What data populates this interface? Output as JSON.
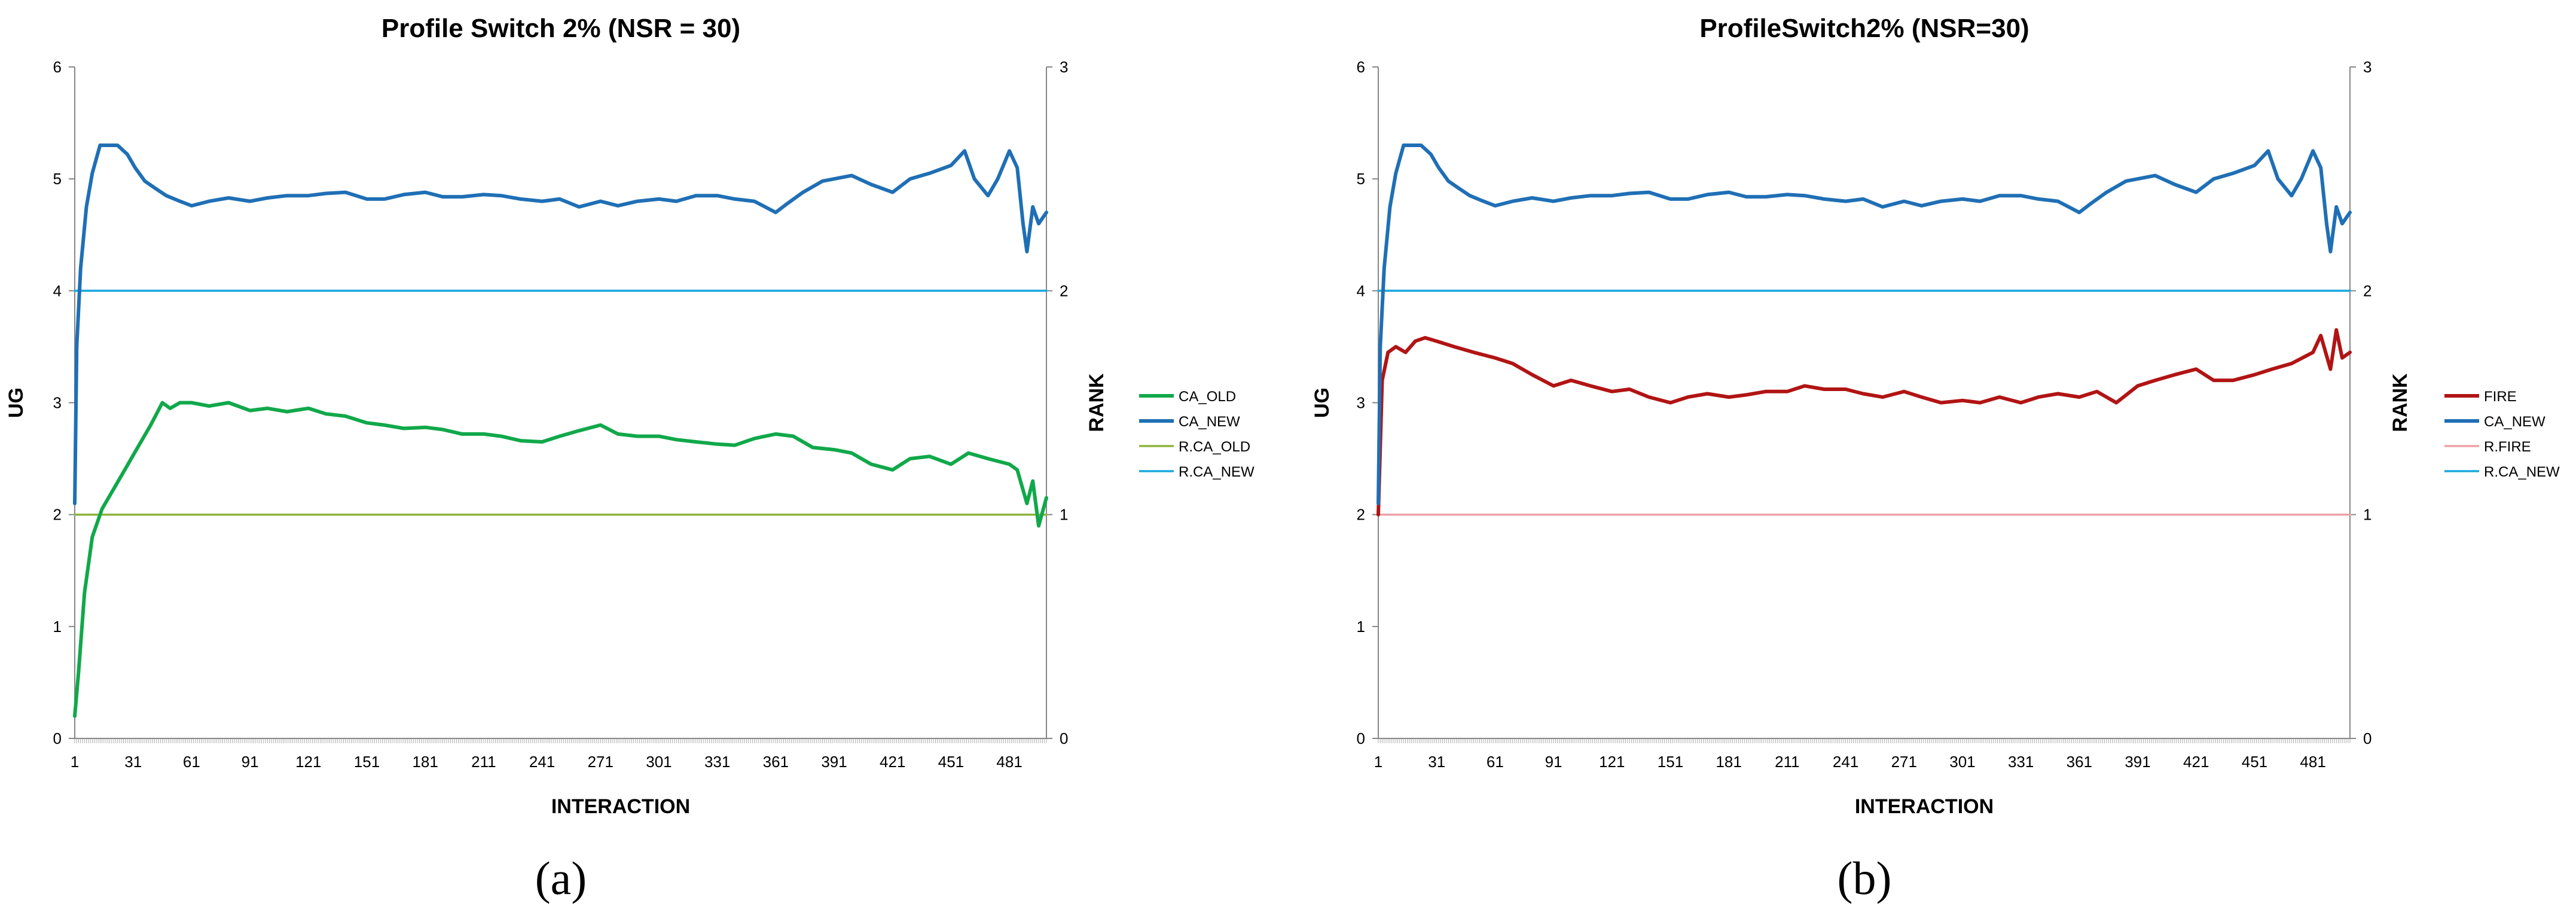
{
  "colors": {
    "ca_new": "#1F6FB5",
    "ca_old": "#11A84A",
    "fire": "#B11414",
    "r_ca_new": "#19A7DE",
    "r_ca_old": "#8DB43C",
    "r_fire": "#EBA2A8",
    "axis": "#868686"
  },
  "chart_data": [
    {
      "type": "line",
      "panel_label": "(a)",
      "title": "Profile Switch 2% (NSR = 30)",
      "xlabel": "INTERACTION",
      "ylabel": "UG",
      "y2label": "RANK",
      "xlim": [
        1,
        500
      ],
      "ylim": [
        0,
        6
      ],
      "y2lim": [
        0,
        3
      ],
      "xticks": [
        1,
        31,
        61,
        91,
        121,
        151,
        181,
        211,
        241,
        271,
        301,
        331,
        361,
        391,
        421,
        451,
        481
      ],
      "yticks": [
        0,
        1,
        2,
        3,
        4,
        5,
        6
      ],
      "y2ticks": [
        0,
        1,
        2,
        3
      ],
      "legend_position": "right",
      "legend": [
        "CA_OLD",
        "CA_NEW",
        "R.CA_OLD",
        "R.CA_NEW"
      ],
      "series": [
        {
          "name": "CA_OLD",
          "axis": "left",
          "color": "#11A84A",
          "x": [
            1,
            3,
            6,
            10,
            15,
            20,
            25,
            30,
            35,
            40,
            46,
            50,
            55,
            61,
            70,
            80,
            91,
            100,
            110,
            121,
            130,
            140,
            151,
            160,
            170,
            181,
            190,
            200,
            211,
            220,
            230,
            241,
            250,
            260,
            271,
            280,
            290,
            301,
            310,
            320,
            331,
            340,
            350,
            361,
            370,
            380,
            391,
            400,
            410,
            421,
            430,
            440,
            451,
            460,
            470,
            481,
            485,
            490,
            493,
            496,
            500
          ],
          "y": [
            0.2,
            0.6,
            1.3,
            1.8,
            2.05,
            2.2,
            2.35,
            2.5,
            2.65,
            2.8,
            3.0,
            2.95,
            3.0,
            3.0,
            2.97,
            3.0,
            2.93,
            2.95,
            2.92,
            2.95,
            2.9,
            2.88,
            2.82,
            2.8,
            2.77,
            2.78,
            2.76,
            2.72,
            2.72,
            2.7,
            2.66,
            2.65,
            2.7,
            2.75,
            2.8,
            2.72,
            2.7,
            2.7,
            2.67,
            2.65,
            2.63,
            2.62,
            2.68,
            2.72,
            2.7,
            2.6,
            2.58,
            2.55,
            2.45,
            2.4,
            2.5,
            2.52,
            2.45,
            2.55,
            2.5,
            2.45,
            2.4,
            2.1,
            2.3,
            1.9,
            2.15
          ]
        },
        {
          "name": "CA_NEW",
          "axis": "left",
          "color": "#1F6FB5",
          "x": [
            1,
            2,
            4,
            7,
            10,
            14,
            18,
            23,
            28,
            32,
            37,
            42,
            48,
            55,
            61,
            70,
            80,
            91,
            100,
            110,
            121,
            130,
            140,
            151,
            160,
            170,
            181,
            190,
            200,
            211,
            220,
            230,
            241,
            250,
            260,
            271,
            280,
            290,
            301,
            310,
            320,
            331,
            340,
            350,
            361,
            367,
            375,
            385,
            391,
            400,
            410,
            421,
            430,
            440,
            451,
            458,
            463,
            470,
            475,
            481,
            485,
            488,
            490,
            493,
            496,
            500
          ],
          "y": [
            2.1,
            3.5,
            4.2,
            4.75,
            5.05,
            5.3,
            5.3,
            5.3,
            5.22,
            5.1,
            4.98,
            4.92,
            4.85,
            4.8,
            4.76,
            4.8,
            4.83,
            4.8,
            4.83,
            4.85,
            4.85,
            4.87,
            4.88,
            4.82,
            4.82,
            4.86,
            4.88,
            4.84,
            4.84,
            4.86,
            4.85,
            4.82,
            4.8,
            4.82,
            4.75,
            4.8,
            4.76,
            4.8,
            4.82,
            4.8,
            4.85,
            4.85,
            4.82,
            4.8,
            4.7,
            4.78,
            4.88,
            4.98,
            5.0,
            5.03,
            4.95,
            4.88,
            5.0,
            5.05,
            5.12,
            5.25,
            5.0,
            4.85,
            5.0,
            5.25,
            5.1,
            4.6,
            4.35,
            4.75,
            4.6,
            4.7
          ]
        },
        {
          "name": "R.CA_OLD",
          "axis": "right",
          "color": "#8DB43C",
          "x": [
            1,
            500
          ],
          "y": [
            1,
            1
          ]
        },
        {
          "name": "R.CA_NEW",
          "axis": "right",
          "color": "#19A7DE",
          "x": [
            1,
            500
          ],
          "y": [
            2,
            2
          ]
        }
      ]
    },
    {
      "type": "line",
      "panel_label": "(b)",
      "title": "ProfileSwitch2% (NSR=30)",
      "xlabel": "INTERACTION",
      "ylabel": "UG",
      "y2label": "RANK",
      "xlim": [
        1,
        500
      ],
      "ylim": [
        0,
        6
      ],
      "y2lim": [
        0,
        3
      ],
      "xticks": [
        1,
        31,
        61,
        91,
        121,
        151,
        181,
        211,
        241,
        271,
        301,
        331,
        361,
        391,
        421,
        451,
        481
      ],
      "yticks": [
        0,
        1,
        2,
        3,
        4,
        5,
        6
      ],
      "y2ticks": [
        0,
        1,
        2,
        3
      ],
      "legend_position": "right",
      "legend": [
        "FIRE",
        "CA_NEW",
        "R.FIRE",
        "R.CA_NEW"
      ],
      "series": [
        {
          "name": "FIRE",
          "axis": "left",
          "color": "#B11414",
          "x": [
            1,
            3,
            6,
            10,
            15,
            20,
            25,
            31,
            40,
            50,
            61,
            70,
            80,
            91,
            100,
            110,
            121,
            130,
            140,
            151,
            160,
            170,
            181,
            190,
            200,
            211,
            220,
            230,
            241,
            250,
            260,
            271,
            280,
            290,
            301,
            310,
            320,
            331,
            340,
            350,
            361,
            370,
            380,
            391,
            400,
            410,
            421,
            430,
            440,
            451,
            460,
            470,
            481,
            485,
            490,
            493,
            496,
            500
          ],
          "y": [
            2.0,
            3.2,
            3.45,
            3.5,
            3.45,
            3.55,
            3.58,
            3.55,
            3.5,
            3.45,
            3.4,
            3.35,
            3.25,
            3.15,
            3.2,
            3.15,
            3.1,
            3.12,
            3.05,
            3.0,
            3.05,
            3.08,
            3.05,
            3.07,
            3.1,
            3.1,
            3.15,
            3.12,
            3.12,
            3.08,
            3.05,
            3.1,
            3.05,
            3.0,
            3.02,
            3.0,
            3.05,
            3.0,
            3.05,
            3.08,
            3.05,
            3.1,
            3.0,
            3.15,
            3.2,
            3.25,
            3.3,
            3.2,
            3.2,
            3.25,
            3.3,
            3.35,
            3.45,
            3.6,
            3.3,
            3.65,
            3.4,
            3.45
          ]
        },
        {
          "name": "CA_NEW",
          "axis": "left",
          "color": "#1F6FB5",
          "x": [
            1,
            2,
            4,
            7,
            10,
            14,
            18,
            23,
            28,
            32,
            37,
            42,
            48,
            55,
            61,
            70,
            80,
            91,
            100,
            110,
            121,
            130,
            140,
            151,
            160,
            170,
            181,
            190,
            200,
            211,
            220,
            230,
            241,
            250,
            260,
            271,
            280,
            290,
            301,
            310,
            320,
            331,
            340,
            350,
            361,
            367,
            375,
            385,
            391,
            400,
            410,
            421,
            430,
            440,
            451,
            458,
            463,
            470,
            475,
            481,
            485,
            488,
            490,
            493,
            496,
            500
          ],
          "y": [
            2.1,
            3.5,
            4.2,
            4.75,
            5.05,
            5.3,
            5.3,
            5.3,
            5.22,
            5.1,
            4.98,
            4.92,
            4.85,
            4.8,
            4.76,
            4.8,
            4.83,
            4.8,
            4.83,
            4.85,
            4.85,
            4.87,
            4.88,
            4.82,
            4.82,
            4.86,
            4.88,
            4.84,
            4.84,
            4.86,
            4.85,
            4.82,
            4.8,
            4.82,
            4.75,
            4.8,
            4.76,
            4.8,
            4.82,
            4.8,
            4.85,
            4.85,
            4.82,
            4.8,
            4.7,
            4.78,
            4.88,
            4.98,
            5.0,
            5.03,
            4.95,
            4.88,
            5.0,
            5.05,
            5.12,
            5.25,
            5.0,
            4.85,
            5.0,
            5.25,
            5.1,
            4.6,
            4.35,
            4.75,
            4.6,
            4.7
          ]
        },
        {
          "name": "R.FIRE",
          "axis": "right",
          "color": "#EBA2A8",
          "x": [
            1,
            500
          ],
          "y": [
            1,
            1
          ]
        },
        {
          "name": "R.CA_NEW",
          "axis": "right",
          "color": "#19A7DE",
          "x": [
            1,
            500
          ],
          "y": [
            2,
            2
          ]
        }
      ]
    }
  ]
}
